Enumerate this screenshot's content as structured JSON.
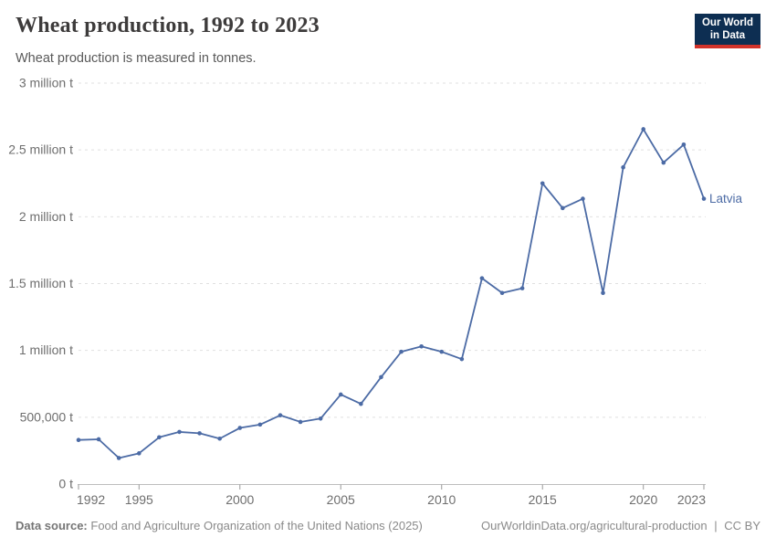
{
  "header": {
    "title": "Wheat production, 1992 to 2023",
    "subtitle": "Wheat production is measured in tonnes.",
    "logo": {
      "line1": "Our World",
      "line2": "in Data"
    }
  },
  "chart_data": {
    "type": "line",
    "title": "Wheat production, 1992 to 2023",
    "unit": "tonnes",
    "xlabel": "",
    "ylabel": "",
    "xlim": [
      1992,
      2023
    ],
    "ylim": [
      0,
      3000000
    ],
    "grid": "dashed horizontal gridlines",
    "legend_position": "series end label",
    "x": [
      1992,
      1993,
      1994,
      1995,
      1996,
      1997,
      1998,
      1999,
      2000,
      2001,
      2002,
      2003,
      2004,
      2005,
      2006,
      2007,
      2008,
      2009,
      2010,
      2011,
      2012,
      2013,
      2014,
      2015,
      2016,
      2017,
      2018,
      2019,
      2020,
      2021,
      2022,
      2023
    ],
    "series": [
      {
        "name": "Latvia",
        "values": [
          330000,
          335000,
          195000,
          230000,
          350000,
          390000,
          380000,
          340000,
          420000,
          445000,
          515000,
          465000,
          490000,
          670000,
          600000,
          800000,
          990000,
          1030000,
          990000,
          935000,
          1540000,
          1430000,
          1465000,
          2250000,
          2065000,
          2135000,
          1430000,
          2370000,
          2655000,
          2405000,
          2540000,
          2135000
        ]
      }
    ],
    "yticks": [
      {
        "value": 0,
        "label": "0 t"
      },
      {
        "value": 500000,
        "label": "500,000 t"
      },
      {
        "value": 1000000,
        "label": "1 million t"
      },
      {
        "value": 1500000,
        "label": "1.5 million t"
      },
      {
        "value": 2000000,
        "label": "2 million t"
      },
      {
        "value": 2500000,
        "label": "2.5 million t"
      },
      {
        "value": 3000000,
        "label": "3 million t"
      }
    ],
    "xticks": [
      {
        "value": 1992,
        "label": "1992"
      },
      {
        "value": 1995,
        "label": "1995"
      },
      {
        "value": 2000,
        "label": "2000"
      },
      {
        "value": 2005,
        "label": "2005"
      },
      {
        "value": 2010,
        "label": "2010"
      },
      {
        "value": 2015,
        "label": "2015"
      },
      {
        "value": 2020,
        "label": "2020"
      },
      {
        "value": 2023,
        "label": "2023"
      }
    ]
  },
  "palette": {
    "line": "#4c6ba5",
    "series_label": "#4c6ba5",
    "grid": "#e0e0e0",
    "axis_line": "#bdbdbd",
    "tick": "#999999",
    "axis_text": "#6e6e6e",
    "title": "#3d3b3b",
    "subtitle": "#595959",
    "footer": "#8a8a8a",
    "logo_bg": "#0d2e52",
    "logo_red": "#d1322a"
  },
  "footer": {
    "source_label": "Data source:",
    "source_text": "Food and Agriculture Organization of the United Nations (2025)",
    "link_text": "OurWorldinData.org/agricultural-production",
    "separator": "|",
    "license": "CC BY"
  }
}
